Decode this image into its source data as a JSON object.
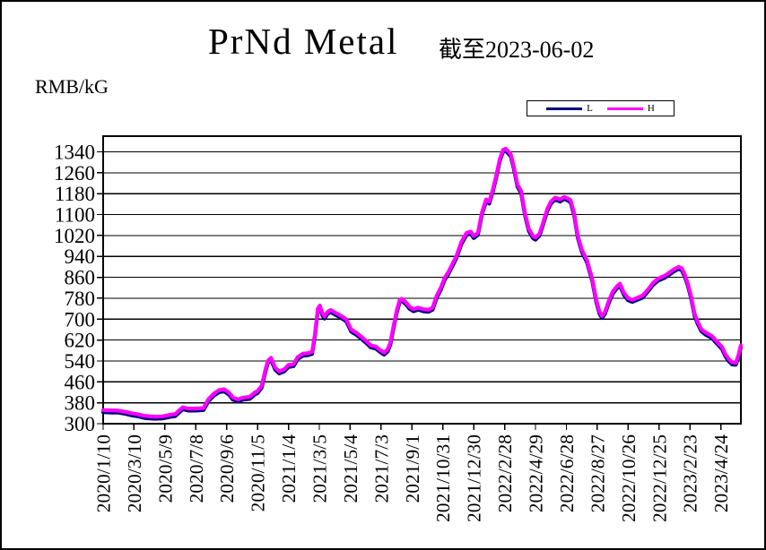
{
  "header": {
    "title": "PrNd Metal",
    "subtitle": "截至2023-06-02",
    "unit_label": "RMB/kG"
  },
  "legend": {
    "series": [
      {
        "label": "L",
        "color": "#000080"
      },
      {
        "label": "H",
        "color": "#ff00ff"
      }
    ]
  },
  "chart_data": {
    "type": "line",
    "title": "PrNd Metal 截至2023-06-02",
    "xlabel": "",
    "ylabel": "RMB/kG",
    "ylim": [
      300,
      1400
    ],
    "grid": "horizontal",
    "legend_position": "top-right",
    "y_ticks": [
      300,
      380,
      460,
      540,
      620,
      700,
      780,
      860,
      940,
      1020,
      1100,
      1180,
      1260,
      1340
    ],
    "x_tick_labels": [
      "2020/1/10",
      "2020/3/10",
      "2020/5/9",
      "2020/7/8",
      "2020/9/6",
      "2020/11/5",
      "2021/1/4",
      "2021/3/5",
      "2021/5/4",
      "2021/7/3",
      "2021/9/1",
      "2021/10/31",
      "2021/12/30",
      "2022/2/28",
      "2022/4/29",
      "2022/6/28",
      "2022/8/27",
      "2022/10/26",
      "2022/12/25",
      "2023/2/23",
      "2023/4/24"
    ],
    "x_tick_days": [
      0,
      60,
      120,
      180,
      240,
      300,
      360,
      420,
      480,
      540,
      600,
      660,
      720,
      780,
      840,
      900,
      960,
      1020,
      1080,
      1140,
      1200
    ],
    "x_range_days": [
      0,
      1239
    ],
    "x_days": [
      0,
      15,
      30,
      45,
      55,
      65,
      80,
      100,
      115,
      130,
      140,
      150,
      155,
      165,
      180,
      195,
      205,
      215,
      225,
      235,
      245,
      252,
      262,
      272,
      285,
      295,
      300,
      308,
      315,
      320,
      326,
      334,
      342,
      352,
      360,
      370,
      378,
      388,
      398,
      406,
      412,
      417,
      421,
      426,
      430,
      436,
      442,
      450,
      460,
      472,
      482,
      492,
      502,
      512,
      520,
      530,
      538,
      546,
      553,
      558,
      564,
      570,
      576,
      580,
      588,
      595,
      603,
      612,
      622,
      632,
      640,
      648,
      656,
      664,
      670,
      677,
      686,
      696,
      706,
      714,
      720,
      728,
      736,
      744,
      750,
      757,
      764,
      771,
      777,
      782,
      787,
      792,
      798,
      805,
      812,
      820,
      827,
      835,
      840,
      848,
      855,
      863,
      870,
      878,
      888,
      896,
      904,
      908,
      915,
      922,
      930,
      940,
      950,
      958,
      964,
      969,
      975,
      982,
      990,
      998,
      1004,
      1012,
      1020,
      1028,
      1038,
      1048,
      1058,
      1068,
      1078,
      1090,
      1100,
      1110,
      1118,
      1124,
      1130,
      1136,
      1142,
      1149,
      1155,
      1162,
      1171,
      1183,
      1191,
      1202,
      1209,
      1215,
      1222,
      1229,
      1234,
      1239
    ],
    "series": [
      {
        "name": "L",
        "color": "#000080",
        "stroke_width": 4.2,
        "values": [
          344,
          343,
          342,
          337,
          332,
          329,
          322,
          319,
          320,
          326,
          329,
          347,
          355,
          350,
          350,
          352,
          387,
          407,
          420,
          424,
          410,
          392,
          385,
          392,
          395,
          412,
          417,
          437,
          497,
          532,
          544,
          507,
          492,
          500,
          517,
          520,
          547,
          560,
          562,
          567,
          642,
          732,
          744,
          714,
          702,
          720,
          727,
          718,
          707,
          692,
          652,
          640,
          624,
          607,
          592,
          587,
          574,
          564,
          577,
          602,
          664,
          722,
          764,
          770,
          757,
          740,
          730,
          736,
          730,
          728,
          736,
          782,
          812,
          852,
          870,
          897,
          932,
          987,
          1022,
          1027,
          1010,
          1022,
          1102,
          1150,
          1142,
          1187,
          1244,
          1307,
          1340,
          1344,
          1334,
          1322,
          1274,
          1207,
          1182,
          1092,
          1037,
          1010,
          1004,
          1020,
          1062,
          1114,
          1142,
          1157,
          1150,
          1160,
          1152,
          1147,
          1097,
          1012,
          957,
          917,
          847,
          767,
          722,
          704,
          720,
          760,
          797,
          817,
          828,
          792,
          772,
          766,
          774,
          782,
          804,
          830,
          847,
          857,
          870,
          884,
          892,
          887,
          862,
          827,
          782,
          712,
          682,
          654,
          640,
          627,
          609,
          586,
          557,
          540,
          527,
          525,
          552,
          592
        ]
      },
      {
        "name": "H",
        "color": "#ff00ff",
        "stroke_width": 4.2,
        "values": [
          352,
          351,
          350,
          345,
          340,
          337,
          330,
          327,
          328,
          334,
          337,
          355,
          363,
          358,
          358,
          360,
          395,
          415,
          428,
          432,
          418,
          400,
          393,
          400,
          403,
          420,
          425,
          445,
          505,
          540,
          552,
          515,
          500,
          508,
          525,
          528,
          555,
          568,
          570,
          575,
          650,
          740,
          752,
          722,
          710,
          728,
          735,
          726,
          715,
          700,
          660,
          648,
          632,
          615,
          600,
          595,
          582,
          572,
          585,
          610,
          672,
          730,
          772,
          778,
          765,
          748,
          738,
          744,
          738,
          736,
          744,
          790,
          820,
          860,
          878,
          905,
          940,
          995,
          1030,
          1035,
          1018,
          1030,
          1110,
          1158,
          1150,
          1195,
          1252,
          1315,
          1348,
          1352,
          1342,
          1330,
          1282,
          1215,
          1190,
          1100,
          1045,
          1018,
          1012,
          1028,
          1070,
          1122,
          1150,
          1165,
          1158,
          1168,
          1160,
          1155,
          1105,
          1020,
          965,
          925,
          855,
          775,
          730,
          712,
          728,
          768,
          805,
          825,
          836,
          800,
          780,
          774,
          782,
          790,
          812,
          838,
          855,
          865,
          878,
          892,
          900,
          895,
          870,
          835,
          790,
          720,
          690,
          662,
          648,
          635,
          617,
          594,
          565,
          548,
          535,
          533,
          560,
          600
        ]
      }
    ]
  },
  "colors": {
    "axis": "#000000",
    "grid": "#000000",
    "background": "#ffffff",
    "series_L": "#000080",
    "series_H": "#ff00ff"
  }
}
